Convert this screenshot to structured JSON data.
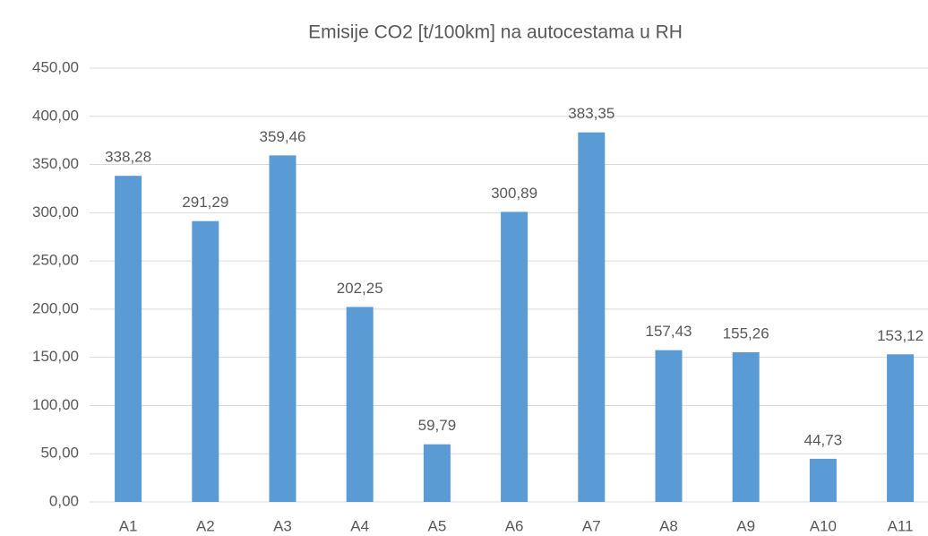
{
  "chart_data": {
    "type": "bar",
    "title": "Emisije CO2 [t/100km] na autocestama u RH",
    "categories": [
      "A1",
      "A2",
      "A3",
      "A4",
      "A5",
      "A6",
      "A7",
      "A8",
      "A9",
      "A10",
      "A11"
    ],
    "values": [
      338.28,
      291.29,
      359.46,
      202.25,
      59.79,
      300.89,
      383.35,
      157.43,
      155.26,
      44.73,
      153.12
    ],
    "value_labels": [
      "338,28",
      "291,29",
      "359,46",
      "202,25",
      "59,79",
      "300,89",
      "383,35",
      "157,43",
      "155,26",
      "44,73",
      "153,12"
    ],
    "color": "#5b9bd5",
    "ylim": [
      0,
      450
    ],
    "yticks": [
      {
        "value": 0,
        "label": "0,00"
      },
      {
        "value": 50,
        "label": "50,00"
      },
      {
        "value": 100,
        "label": "100,00"
      },
      {
        "value": 150,
        "label": "150,00"
      },
      {
        "value": 200,
        "label": "200,00"
      },
      {
        "value": 250,
        "label": "250,00"
      },
      {
        "value": 300,
        "label": "300,00"
      },
      {
        "value": 350,
        "label": "350,00"
      },
      {
        "value": 400,
        "label": "400,00"
      },
      {
        "value": 450,
        "label": "450,00"
      }
    ],
    "grid": true
  }
}
